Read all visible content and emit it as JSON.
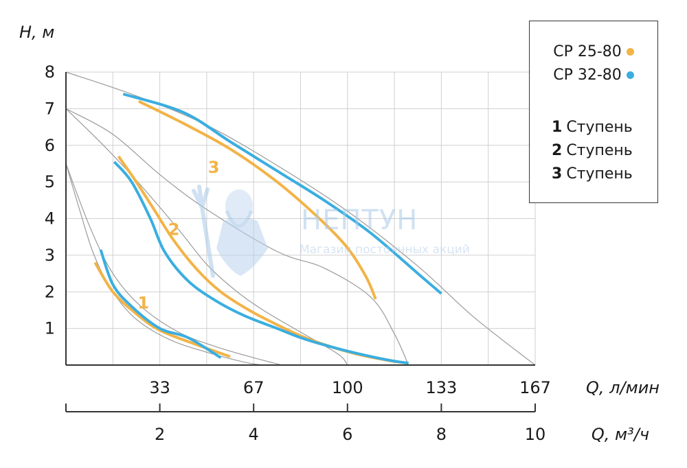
{
  "colors": {
    "cp25": "#f2b347",
    "cp32": "#3aaee0",
    "grid": "#cfcfcf",
    "axis": "#333333",
    "system": "#9a9a9a"
  },
  "watermark": {
    "title": "НЕПТУН",
    "subtitle": "Магазин постоянных акций"
  },
  "legend": {
    "series": [
      {
        "name": "CP 25-80",
        "color": "#f2b347"
      },
      {
        "name": "CP 32-80",
        "color": "#3aaee0"
      }
    ],
    "steps": [
      {
        "num": "1",
        "label": "Ступень"
      },
      {
        "num": "2",
        "label": "Ступень"
      },
      {
        "num": "3",
        "label": "Ступень"
      }
    ]
  },
  "chart_data": {
    "type": "line",
    "title": "",
    "ylabel": "H, м",
    "xlabel": "Q, л/мин",
    "x2label": "Q, м³/ч",
    "xlim": [
      0,
      10
    ],
    "ylim": [
      0,
      8
    ],
    "yticks": [
      1,
      2,
      3,
      4,
      5,
      6,
      7,
      8
    ],
    "xticks_lmin": [
      {
        "at": 2,
        "label": "33"
      },
      {
        "at": 4,
        "label": "67"
      },
      {
        "at": 6,
        "label": "100"
      },
      {
        "at": 8,
        "label": "133"
      },
      {
        "at": 10,
        "label": "167"
      }
    ],
    "xticks_m3h": [
      {
        "at": 2,
        "label": "2"
      },
      {
        "at": 4,
        "label": "4"
      },
      {
        "at": 6,
        "label": "6"
      },
      {
        "at": 8,
        "label": "8"
      },
      {
        "at": 10,
        "label": "10"
      }
    ],
    "grid": true,
    "legend_position": "top-right",
    "series": [
      {
        "model": "CP 25-80",
        "step": "1",
        "color": "#f2b347",
        "points": [
          [
            0.62,
            2.8
          ],
          [
            1.0,
            2.0
          ],
          [
            1.5,
            1.4
          ],
          [
            2.0,
            0.95
          ],
          [
            2.8,
            0.55
          ],
          [
            3.5,
            0.23
          ]
        ]
      },
      {
        "model": "CP 25-80",
        "step": "2",
        "color": "#f2b347",
        "points": [
          [
            1.12,
            5.7
          ],
          [
            1.5,
            5.0
          ],
          [
            1.9,
            4.2
          ],
          [
            2.3,
            3.4
          ],
          [
            2.8,
            2.6
          ],
          [
            3.3,
            2.0
          ],
          [
            3.9,
            1.5
          ],
          [
            4.5,
            1.1
          ],
          [
            5.0,
            0.8
          ],
          [
            5.6,
            0.52
          ],
          [
            6.2,
            0.3
          ],
          [
            6.9,
            0.12
          ],
          [
            7.3,
            0.05
          ]
        ]
      },
      {
        "model": "CP 25-80",
        "step": "3",
        "color": "#f2b347",
        "points": [
          [
            1.55,
            7.2
          ],
          [
            2.5,
            6.6
          ],
          [
            3.5,
            5.9
          ],
          [
            4.5,
            5.0
          ],
          [
            5.4,
            4.0
          ],
          [
            6.0,
            3.2
          ],
          [
            6.4,
            2.4
          ],
          [
            6.6,
            1.8
          ]
        ]
      },
      {
        "model": "CP 32-80",
        "step": "1",
        "color": "#3aaee0",
        "points": [
          [
            0.74,
            3.15
          ],
          [
            1.0,
            2.2
          ],
          [
            1.4,
            1.6
          ],
          [
            2.0,
            1.0
          ],
          [
            2.6,
            0.75
          ],
          [
            3.3,
            0.2
          ]
        ]
      },
      {
        "model": "CP 32-80",
        "step": "2",
        "color": "#3aaee0",
        "points": [
          [
            1.03,
            5.55
          ],
          [
            1.4,
            5.0
          ],
          [
            1.8,
            4.0
          ],
          [
            2.1,
            3.1
          ],
          [
            2.6,
            2.3
          ],
          [
            3.2,
            1.75
          ],
          [
            3.8,
            1.35
          ],
          [
            4.5,
            1.0
          ],
          [
            5.0,
            0.75
          ],
          [
            5.5,
            0.55
          ],
          [
            6.2,
            0.32
          ],
          [
            6.9,
            0.13
          ],
          [
            7.3,
            0.05
          ]
        ]
      },
      {
        "model": "CP 32-80",
        "step": "3",
        "color": "#3aaee0",
        "points": [
          [
            1.22,
            7.4
          ],
          [
            2.5,
            6.9
          ],
          [
            3.5,
            6.1
          ],
          [
            4.5,
            5.3
          ],
          [
            5.5,
            4.5
          ],
          [
            6.5,
            3.6
          ],
          [
            7.5,
            2.5
          ],
          [
            8.0,
            1.95
          ]
        ]
      }
    ],
    "reference_lines": [
      {
        "points": [
          [
            0,
            8
          ],
          [
            1.5,
            7.35
          ],
          [
            3,
            6.55
          ],
          [
            4.5,
            5.45
          ],
          [
            6,
            4.2
          ],
          [
            7.5,
            2.7
          ],
          [
            8.7,
            1.3
          ],
          [
            10,
            0
          ]
        ]
      },
      {
        "points": [
          [
            0,
            7
          ],
          [
            1,
            6.3
          ],
          [
            2,
            5.2
          ],
          [
            3,
            4.25
          ],
          [
            4.5,
            3.1
          ],
          [
            5.5,
            2.65
          ],
          [
            6.5,
            1.85
          ],
          [
            7.0,
            0.85
          ],
          [
            7.3,
            0.0
          ]
        ]
      },
      {
        "points": [
          [
            0,
            7
          ],
          [
            0.8,
            6.0
          ],
          [
            1.6,
            4.9
          ],
          [
            2.4,
            3.7
          ],
          [
            3.0,
            2.75
          ],
          [
            3.6,
            2.05
          ],
          [
            4.2,
            1.5
          ],
          [
            5.0,
            0.9
          ],
          [
            5.8,
            0.3
          ],
          [
            6.0,
            0.0
          ]
        ]
      },
      {
        "points": [
          [
            0,
            5.5
          ],
          [
            0.5,
            3.8
          ],
          [
            1.0,
            2.5
          ],
          [
            1.6,
            1.6
          ],
          [
            2.4,
            0.9
          ],
          [
            3.2,
            0.5
          ],
          [
            4.0,
            0.2
          ],
          [
            4.6,
            0.0
          ]
        ]
      },
      {
        "points": [
          [
            0,
            5.5
          ],
          [
            0.3,
            4.2
          ],
          [
            0.6,
            3.0
          ],
          [
            1.0,
            2.0
          ],
          [
            1.5,
            1.25
          ],
          [
            2.2,
            0.7
          ],
          [
            3.0,
            0.35
          ],
          [
            3.8,
            0.08
          ],
          [
            4.2,
            0.0
          ]
        ]
      }
    ],
    "curve_labels": [
      {
        "text": "1",
        "x": 1.65,
        "y": 1.55,
        "color": "#f2b347"
      },
      {
        "text": "2",
        "x": 2.3,
        "y": 3.55,
        "color": "#f2b347"
      },
      {
        "text": "3",
        "x": 3.15,
        "y": 5.25,
        "color": "#f2b347"
      }
    ]
  }
}
